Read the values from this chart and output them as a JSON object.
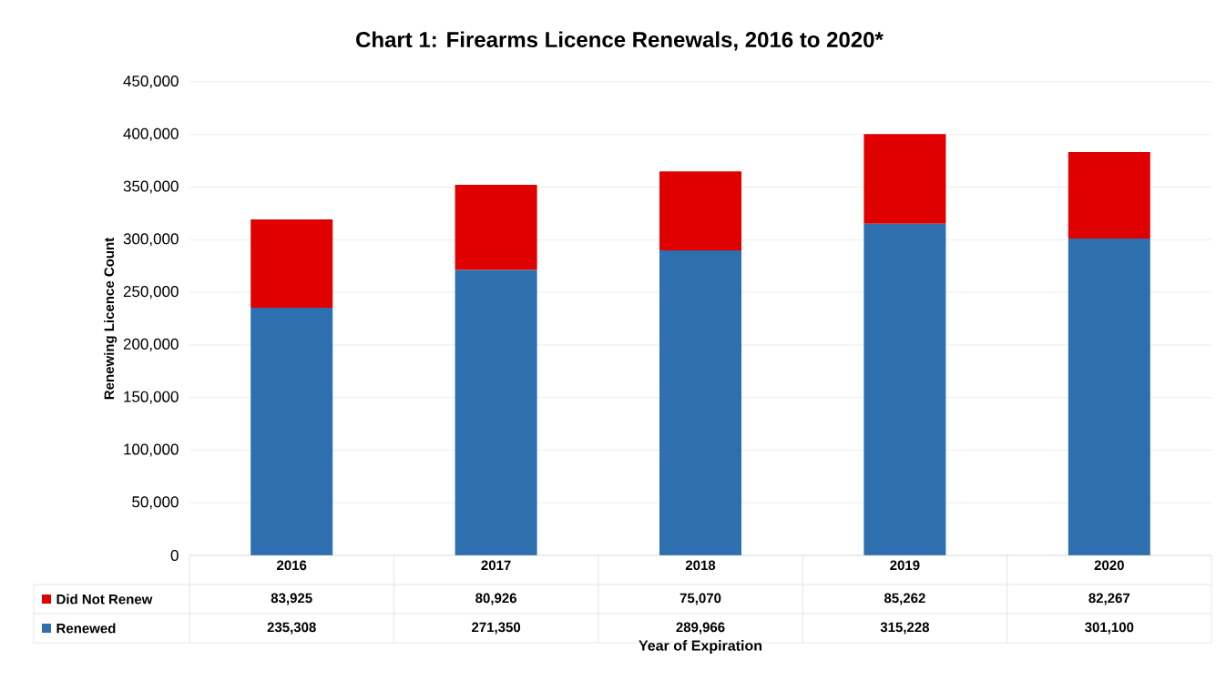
{
  "chart_data": {
    "type": "bar",
    "stacked": true,
    "title": "Chart 1: Firearms Licence Renewals, 2016 to 2020*",
    "xlabel": "Year of Expiration",
    "ylabel": "Renewing Licence Count",
    "categories": [
      "2016",
      "2017",
      "2018",
      "2019",
      "2020"
    ],
    "series": [
      {
        "name": "Renewed",
        "color": "#2e6fb0",
        "values": [
          235308,
          271350,
          289966,
          315228,
          301100
        ],
        "value_labels": [
          "235,308",
          "271,350",
          "289,966",
          "315,228",
          "301,100"
        ]
      },
      {
        "name": "Did Not Renew",
        "color": "#e00000",
        "values": [
          83925,
          80926,
          75070,
          85262,
          82267
        ],
        "value_labels": [
          "83,925",
          "80,926",
          "75,070",
          "85,262",
          "82,267"
        ]
      }
    ],
    "ylim": [
      0,
      450000
    ],
    "yticks": [
      {
        "value": 0,
        "label": "0"
      },
      {
        "value": 50000,
        "label": "50,000"
      },
      {
        "value": 100000,
        "label": "100,000"
      },
      {
        "value": 150000,
        "label": "150,000"
      },
      {
        "value": 200000,
        "label": "200,000"
      },
      {
        "value": 250000,
        "label": "250,000"
      },
      {
        "value": 300000,
        "label": "300,000"
      },
      {
        "value": 350000,
        "label": "350,000"
      },
      {
        "value": 400000,
        "label": "400,000"
      },
      {
        "value": 450000,
        "label": "450,000"
      }
    ],
    "grid": "y",
    "legend": "bottom"
  }
}
